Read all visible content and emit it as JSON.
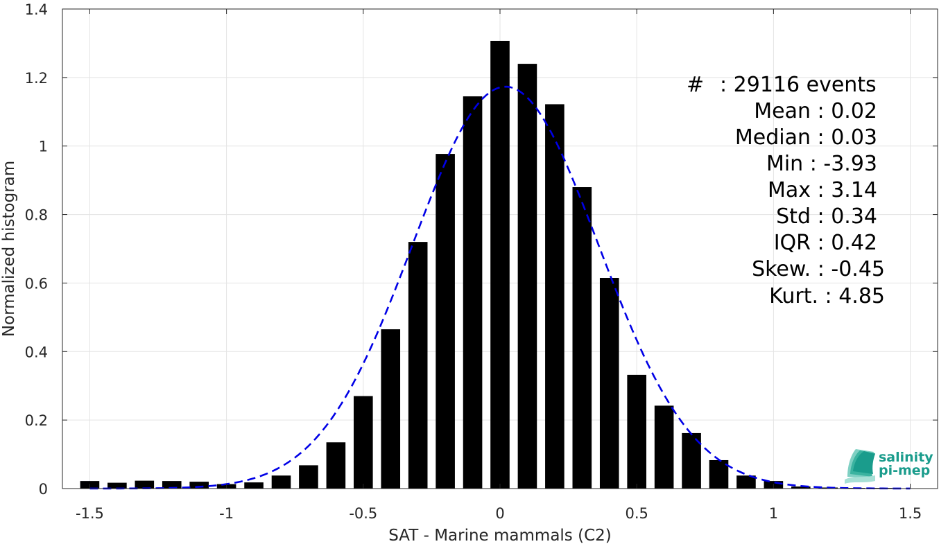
{
  "chart_data": {
    "type": "bar",
    "xlabel": "SAT - Marine mammals (C2)",
    "ylabel": "Normalized histogram",
    "xlim": [
      -1.6,
      1.6
    ],
    "ylim": [
      0,
      1.4
    ],
    "xticks": [
      -1.5,
      -1,
      -0.5,
      0,
      0.5,
      1,
      1.5
    ],
    "xtick_labels": [
      "-1.5",
      "-1",
      "-0.5",
      "0",
      "0.5",
      "1",
      "1.5"
    ],
    "yticks": [
      0,
      0.2,
      0.4,
      0.6,
      0.8,
      1,
      1.2,
      1.4
    ],
    "ytick_labels": [
      "0",
      "0.2",
      "0.4",
      "0.6",
      "0.8",
      "1",
      "1.2",
      "1.4"
    ],
    "grid": true,
    "bar_color": "#000000",
    "fit_color": "#0000e6",
    "bins": {
      "x": [
        -1.5,
        -1.4,
        -1.3,
        -1.2,
        -1.1,
        -1.0,
        -0.9,
        -0.8,
        -0.7,
        -0.6,
        -0.5,
        -0.4,
        -0.3,
        -0.2,
        -0.1,
        0.0,
        0.1,
        0.2,
        0.3,
        0.4,
        0.5,
        0.6,
        0.7,
        0.8,
        0.9,
        1.0,
        1.1,
        1.2,
        1.3,
        1.4,
        1.5
      ],
      "values": [
        0.022,
        0.017,
        0.023,
        0.022,
        0.02,
        0.013,
        0.018,
        0.038,
        0.068,
        0.135,
        0.27,
        0.465,
        0.72,
        0.977,
        1.145,
        1.307,
        1.24,
        1.122,
        0.88,
        0.615,
        0.332,
        0.242,
        0.162,
        0.083,
        0.038,
        0.022,
        0.006,
        0.003,
        0.002,
        0.002,
        0.001
      ]
    },
    "fit": {
      "type": "gaussian",
      "mean": 0.02,
      "std": 0.34,
      "style": "dashed"
    }
  },
  "stats": [
    {
      "label": "#",
      "value": ": 29116 events"
    },
    {
      "label": "Mean",
      "value": ": 0.02"
    },
    {
      "label": "Median",
      "value": ": 0.03"
    },
    {
      "label": "Min",
      "value": ": -3.93"
    },
    {
      "label": "Max",
      "value": ": 3.14"
    },
    {
      "label": "Std",
      "value": ": 0.34"
    },
    {
      "label": "IQR",
      "value": ": 0.42"
    },
    {
      "label": "Skew.",
      "value": ": -0.45"
    },
    {
      "label": "Kurt.",
      "value": ": 4.85"
    }
  ],
  "logo": {
    "line1": "salinity",
    "line2": "pi-mep",
    "color": "#1a9c8c"
  }
}
